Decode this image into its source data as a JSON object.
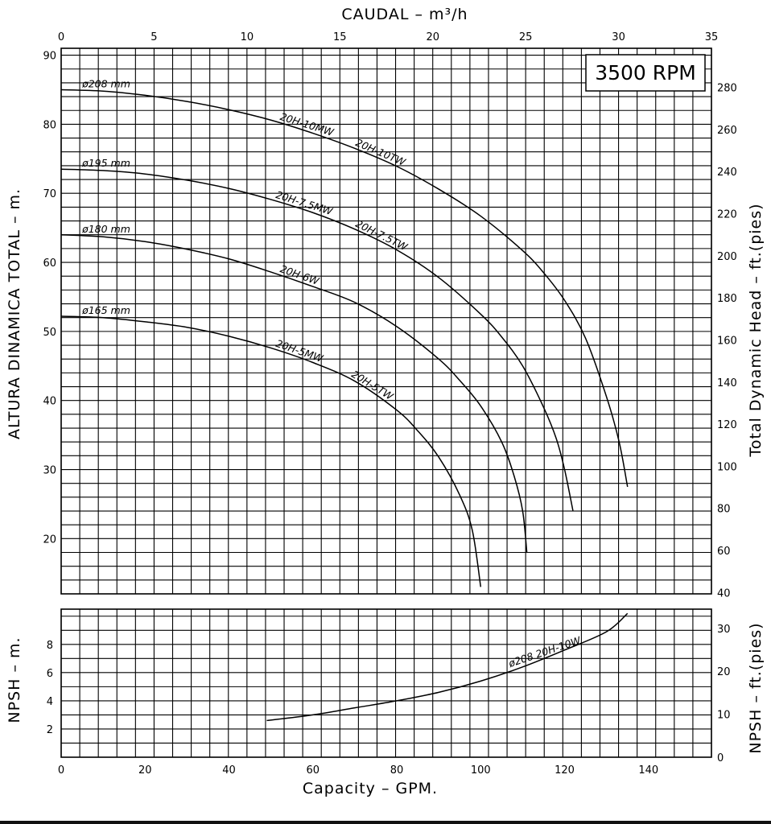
{
  "rpm_label": "3500 RPM",
  "chart_data": [
    {
      "type": "line",
      "title": "",
      "top_axis": {
        "label": "CAUDAL  –  m³/h",
        "range": [
          0,
          35
        ],
        "ticks": [
          0,
          5,
          10,
          15,
          20,
          25,
          30,
          35
        ]
      },
      "bottom_axis": {
        "label": "Capacity  –  GPM.",
        "range": [
          0,
          155
        ],
        "ticks": [
          0,
          20,
          40,
          60,
          80,
          100,
          120,
          140
        ]
      },
      "left_axis": {
        "label": "ALTURA DINAMICA TOTAL  –  m.",
        "range": [
          12,
          91
        ],
        "ticks": [
          20,
          30,
          40,
          50,
          60,
          70,
          80,
          90
        ]
      },
      "right_axis": {
        "label": "Total Dynamic Head  –  ft.(pies)",
        "ticks": [
          40,
          60,
          80,
          100,
          120,
          140,
          160,
          180,
          200,
          220,
          240,
          260,
          280
        ]
      },
      "grid": true,
      "series": [
        {
          "name": "ø208 mm",
          "models": [
            "20H-10MW",
            "20H-10TW"
          ],
          "x_gpm": [
            0,
            10,
            20,
            30,
            40,
            50,
            60,
            70,
            80,
            90,
            100,
            110,
            115,
            120,
            125,
            130,
            133,
            135
          ],
          "y_m": [
            85,
            84.8,
            84.2,
            83.3,
            82.1,
            80.6,
            78.7,
            76.5,
            73.9,
            70.6,
            66.7,
            61.7,
            58.5,
            54.5,
            49,
            40.5,
            34,
            27.5
          ]
        },
        {
          "name": "ø195 mm",
          "models": [
            "20H-7.5MW",
            "20H-7.5TW"
          ],
          "x_gpm": [
            0,
            10,
            20,
            30,
            40,
            50,
            60,
            70,
            80,
            90,
            100,
            105,
            110,
            115,
            118,
            120,
            122
          ],
          "y_m": [
            73.5,
            73.3,
            72.8,
            71.9,
            70.7,
            69.1,
            67.2,
            64.8,
            61.8,
            57.8,
            52.5,
            49.2,
            45,
            39,
            34.5,
            30,
            24
          ]
        },
        {
          "name": "ø180 mm",
          "models": [
            "20H-6W"
          ],
          "x_gpm": [
            0,
            10,
            20,
            30,
            40,
            50,
            60,
            70,
            80,
            90,
            95,
            100,
            105,
            108,
            110,
            111
          ],
          "y_m": [
            64,
            63.7,
            63,
            61.9,
            60.5,
            58.6,
            56.5,
            54.2,
            50.7,
            46,
            42.9,
            39.2,
            34,
            29,
            24,
            18
          ]
        },
        {
          "name": "ø165 mm",
          "models": [
            "20H-5MW",
            "20H-5TW"
          ],
          "x_gpm": [
            0,
            10,
            20,
            30,
            40,
            50,
            60,
            70,
            80,
            85,
            90,
            95,
            98,
            100
          ],
          "y_m": [
            52.2,
            52,
            51.4,
            50.6,
            49.3,
            47.6,
            45.5,
            42.8,
            38.6,
            35.6,
            31.8,
            26.3,
            21.2,
            13
          ]
        }
      ]
    },
    {
      "type": "line",
      "title": "",
      "left_axis": {
        "label": "NPSH  –  m.",
        "range": [
          0,
          10.5
        ],
        "ticks": [
          2,
          4,
          6,
          8
        ]
      },
      "right_axis": {
        "label": "NPSH  –  ft.(pies)",
        "ticks": [
          0,
          10,
          20,
          30
        ]
      },
      "bottom_axis": {
        "label": "Capacity  –  GPM.",
        "range": [
          0,
          155
        ]
      },
      "grid": true,
      "series": [
        {
          "name": "ø208 20H-10W",
          "x_gpm": [
            49,
            60,
            70,
            80,
            90,
            100,
            110,
            120,
            130,
            135
          ],
          "y_m": [
            2.6,
            3.0,
            3.5,
            4.0,
            4.6,
            5.4,
            6.4,
            7.6,
            8.9,
            10.2
          ]
        }
      ]
    }
  ]
}
